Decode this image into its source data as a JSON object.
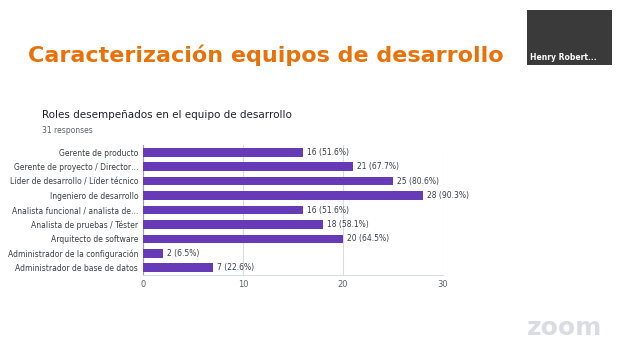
{
  "slide": {
    "title": "Caracterización equipos de desarrollo"
  },
  "video": {
    "name": "Henry Robert...",
    "logo": "zoom"
  },
  "chart_data": {
    "type": "bar",
    "orientation": "horizontal",
    "title": "Roles desempeñados en el equipo de desarrollo",
    "subtitle": "31 responses",
    "categories": [
      "Gerente de producto",
      "Gerente de proyecto / Director…",
      "Líder de desarrollo / Líder técnico",
      "Ingeniero de desarrollo",
      "Analista funcional / analista de…",
      "Analista de pruebas / Téster",
      "Arquitecto de software",
      "Administrador de la configuración",
      "Administrador de base de datos"
    ],
    "values": [
      16,
      21,
      25,
      28,
      16,
      18,
      20,
      2,
      7
    ],
    "value_labels": [
      "16 (51.6%)",
      "21 (67.7%)",
      "25 (80.6%)",
      "28 (90.3%)",
      "16 (51.6%)",
      "18 (58.1%)",
      "20 (64.5%)",
      "2 (6.5%)",
      "7 (22.6%)"
    ],
    "data_labels": true,
    "color": "#673ab7",
    "xlim": [
      0,
      30
    ],
    "xticks": [
      0,
      10,
      20,
      30
    ],
    "grid": true
  }
}
